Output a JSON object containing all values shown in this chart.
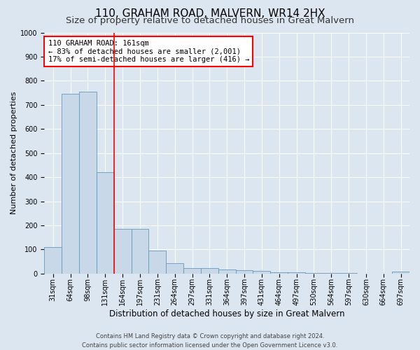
{
  "title": "110, GRAHAM ROAD, MALVERN, WR14 2HX",
  "subtitle": "Size of property relative to detached houses in Great Malvern",
  "xlabel": "Distribution of detached houses by size in Great Malvern",
  "ylabel": "Number of detached properties",
  "footer1": "Contains HM Land Registry data © Crown copyright and database right 2024.",
  "footer2": "Contains public sector information licensed under the Open Government Licence v3.0.",
  "categories": [
    "31sqm",
    "64sqm",
    "98sqm",
    "131sqm",
    "164sqm",
    "197sqm",
    "231sqm",
    "264sqm",
    "297sqm",
    "331sqm",
    "364sqm",
    "397sqm",
    "431sqm",
    "464sqm",
    "497sqm",
    "530sqm",
    "564sqm",
    "597sqm",
    "630sqm",
    "664sqm",
    "697sqm"
  ],
  "values": [
    110,
    745,
    755,
    420,
    185,
    185,
    95,
    42,
    22,
    22,
    18,
    13,
    10,
    6,
    4,
    2,
    2,
    1,
    0,
    0,
    8
  ],
  "bar_color": "#c8d8e8",
  "bar_edge_color": "#6699bb",
  "subject_line_idx": 4,
  "subject_line_color": "red",
  "annotation_line1": "110 GRAHAM ROAD: 161sqm",
  "annotation_line2": "← 83% of detached houses are smaller (2,001)",
  "annotation_line3": "17% of semi-detached houses are larger (416) →",
  "annotation_box_color": "white",
  "annotation_box_edge": "red",
  "ylim": [
    0,
    1000
  ],
  "yticks": [
    0,
    100,
    200,
    300,
    400,
    500,
    600,
    700,
    800,
    900,
    1000
  ],
  "background_color": "#dce6f0",
  "plot_bg_color": "#dce6f0",
  "title_fontsize": 11,
  "subtitle_fontsize": 9.5,
  "xlabel_fontsize": 8.5,
  "ylabel_fontsize": 8,
  "tick_fontsize": 7,
  "footer_fontsize": 6,
  "annotation_fontsize": 7.5
}
